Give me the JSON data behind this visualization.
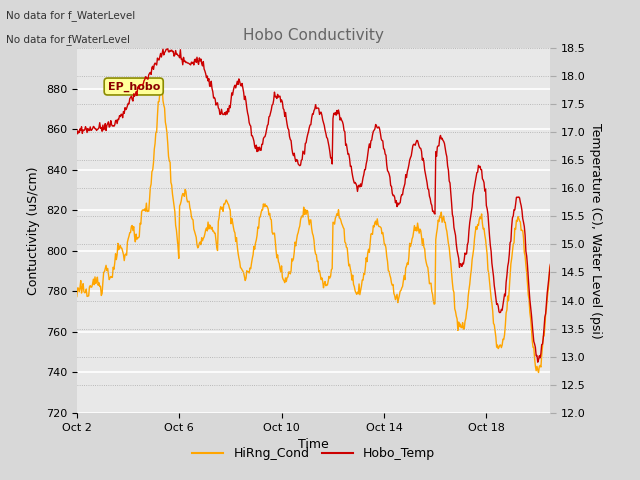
{
  "title": "Hobo Conductivity",
  "xlabel": "Time",
  "ylabel_left": "Contuctivity (uS/cm)",
  "ylabel_right": "Temperature (C), Water Level (psi)",
  "text_line1": "No data for f_WaterLevel",
  "text_line2": "No data for f̲WaterLevel",
  "ep_hobo_label": "EP_hobo",
  "legend": [
    "HiRng_Cond",
    "Hobo_Temp"
  ],
  "legend_colors": [
    "#FFA500",
    "#CC0000"
  ],
  "ylim_left": [
    720,
    900
  ],
  "ylim_right": [
    12.0,
    18.5
  ],
  "yticks_left": [
    720,
    740,
    760,
    780,
    800,
    820,
    840,
    860,
    880
  ],
  "yticks_right": [
    12.0,
    12.5,
    13.0,
    13.5,
    14.0,
    14.5,
    15.0,
    15.5,
    16.0,
    16.5,
    17.0,
    17.5,
    18.0,
    18.5
  ],
  "xtick_labels": [
    "Oct 2",
    "Oct 6",
    "Oct 10",
    "Oct 14",
    "Oct 18"
  ],
  "xtick_positions": [
    0,
    4,
    8,
    12,
    16
  ],
  "xlim": [
    0,
    18.5
  ],
  "fig_bg_color": "#D8D8D8",
  "plot_bg_color": "#E8E8E8",
  "grid_color": "#FFFFFF",
  "orange_color": "#FFA500",
  "red_color": "#CC0000",
  "title_color": "#666666",
  "text_color": "#333333"
}
